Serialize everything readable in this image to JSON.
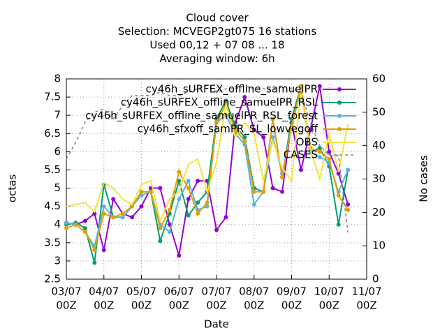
{
  "chart_data": {
    "type": "line",
    "title": [
      "Cloud cover",
      "Selection: MCVEGP2gt075     16 stations",
      "Used  00,12  + 07 08 ... 18",
      "Averaging window:  6h"
    ],
    "xlabel": "Date",
    "ylabel": "octas",
    "y2label": "No cases",
    "x": [
      "03/07 00Z",
      "03/07 06Z",
      "03/07 12Z",
      "03/07 18Z",
      "04/07 00Z",
      "04/07 06Z",
      "04/07 12Z",
      "04/07 18Z",
      "05/07 00Z",
      "05/07 06Z",
      "05/07 12Z",
      "05/07 18Z",
      "06/07 00Z",
      "06/07 06Z",
      "06/07 12Z",
      "06/07 18Z",
      "07/07 00Z",
      "07/07 06Z",
      "07/07 12Z",
      "07/07 18Z",
      "08/07 00Z",
      "08/07 06Z",
      "08/07 12Z",
      "08/07 18Z",
      "09/07 00Z",
      "09/07 06Z",
      "09/07 12Z",
      "09/07 18Z",
      "10/07 00Z",
      "10/07 06Z",
      "10/07 12Z"
    ],
    "xlim": [
      "03/07 00Z",
      "11/07 00Z"
    ],
    "xticks": [
      [
        "03/07",
        "00Z"
      ],
      [
        "04/07",
        "00Z"
      ],
      [
        "05/07",
        "00Z"
      ],
      [
        "06/07",
        "00Z"
      ],
      [
        "07/07",
        "00Z"
      ],
      [
        "08/07",
        "00Z"
      ],
      [
        "09/07",
        "00Z"
      ],
      [
        "10/07",
        "00Z"
      ],
      [
        "11/07",
        "00Z"
      ]
    ],
    "ylim": [
      2.5,
      8
    ],
    "yticks": [
      2.5,
      3,
      3.5,
      4,
      4.5,
      5,
      5.5,
      6,
      6.5,
      7,
      7.5,
      8
    ],
    "y2lim": [
      0,
      60
    ],
    "y2ticks": [
      0,
      10,
      20,
      30,
      40,
      50,
      60
    ],
    "grid": true,
    "legend": "top right",
    "series": [
      {
        "name": "cy46h_sURFEX_offline_samuelPR",
        "color": "#9400d3",
        "marker": true,
        "values": [
          4.05,
          4.0,
          4.1,
          4.3,
          3.3,
          4.7,
          4.3,
          4.2,
          4.5,
          5.0,
          5.0,
          4.0,
          3.15,
          4.7,
          5.2,
          5.2,
          3.85,
          4.2,
          6.8,
          7.5,
          6.6,
          6.4,
          5.0,
          4.9,
          6.8,
          5.5,
          6.6,
          7.8,
          6.0,
          5.4,
          4.55
        ]
      },
      {
        "name": "cy46h_sURFEX_offline_samuelPR_RSL",
        "color": "#009e73",
        "marker": true,
        "values": [
          4.0,
          4.05,
          3.9,
          2.95,
          5.1,
          4.2,
          4.2,
          4.5,
          4.9,
          4.9,
          3.55,
          4.3,
          5.2,
          4.25,
          4.6,
          4.9,
          6.9,
          7.4,
          6.7,
          6.4,
          5.0,
          4.9,
          6.9,
          5.3,
          6.9,
          7.8,
          6.0,
          6.1,
          5.6,
          4.0,
          5.5
        ]
      },
      {
        "name": "cy46h_sURFEX_offline_samuelPR_RSL_forest",
        "color": "#56b4e9",
        "marker": true,
        "values": [
          4.05,
          4.0,
          3.8,
          3.4,
          4.5,
          4.2,
          4.2,
          4.5,
          4.8,
          4.9,
          4.0,
          3.8,
          4.7,
          5.2,
          4.4,
          4.5,
          6.8,
          7.0,
          6.5,
          6.2,
          4.55,
          4.9,
          6.4,
          5.4,
          6.7,
          7.7,
          6.0,
          5.85,
          5.7,
          4.9,
          5.5
        ]
      },
      {
        "name": "cy46h_sfxoff_samPR_SL_lowvegoff",
        "color": "#e69f00",
        "marker": true,
        "values": [
          3.9,
          4.0,
          3.8,
          3.3,
          4.3,
          4.2,
          4.3,
          4.5,
          4.9,
          4.9,
          3.9,
          4.4,
          5.45,
          5.0,
          4.3,
          4.6,
          6.8,
          7.3,
          6.6,
          6.3,
          4.9,
          4.9,
          6.9,
          5.3,
          6.7,
          7.8,
          6.1,
          6.0,
          5.8,
          4.8,
          4.4
        ]
      },
      {
        "name": "OBS",
        "color": "#f0e442",
        "marker": false,
        "values": [
          4.5,
          4.55,
          4.6,
          4.35,
          5.15,
          5.0,
          4.7,
          4.55,
          5.1,
          5.2,
          4.1,
          4.7,
          4.9,
          5.65,
          5.8,
          4.9,
          5.7,
          7.3,
          6.4,
          6.8,
          6.5,
          5.2,
          6.3,
          5.55,
          5.2,
          7.7,
          6.05,
          5.25,
          6.5,
          5.45,
          6.75
        ]
      },
      {
        "name": "CASES",
        "color": "#808080",
        "marker": false,
        "dashed": true,
        "axis": "y2",
        "values": [
          36,
          41,
          47,
          50,
          51,
          48,
          52,
          55,
          55,
          55,
          56,
          55,
          55,
          56,
          57,
          58,
          56,
          57,
          57,
          58,
          57,
          57,
          57,
          58,
          57,
          56,
          47,
          40,
          37,
          37,
          14
        ]
      }
    ]
  }
}
